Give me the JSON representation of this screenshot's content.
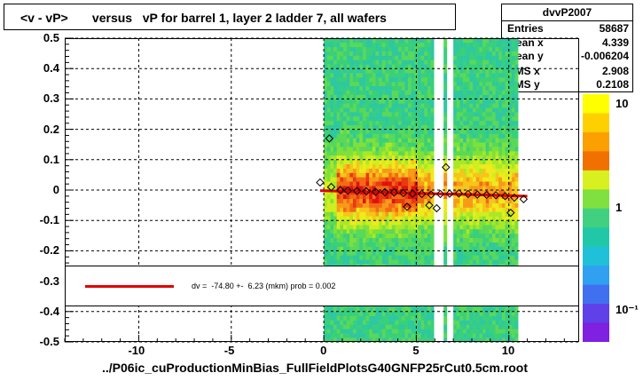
{
  "title": "<v - vP>       versus   vP for barrel 1, layer 2 ladder 7, all wafers",
  "stats": {
    "name": "dvvP2007",
    "rows": [
      {
        "label": "Entries",
        "value": "58687"
      },
      {
        "label": "Mean x",
        "value": "4.339"
      },
      {
        "label": "Mean y",
        "value": "-0.006204"
      },
      {
        "label": "RMS x",
        "value": "2.908"
      },
      {
        "label": "RMS y",
        "value": "0.2108"
      }
    ]
  },
  "fit_text": "dv =  -74.80 +-  6.23 (mkm) prob = 0.002",
  "chart_data": {
    "type": "heatmap",
    "xlabel": "../P06ic_cuProductionMinBias_FullFieldPlotsG40GNFP25rCut0.5cm.root",
    "ylabel": "",
    "xlim": [
      -14,
      13.8
    ],
    "ylim": [
      -0.5,
      0.5
    ],
    "x_ticks": [
      "-10",
      "-5",
      "0",
      "5",
      "10"
    ],
    "y_ticks": [
      "-0.5",
      "-0.4",
      "-0.3",
      "-0.2",
      "-0.1",
      "0",
      "0.1",
      "0.2",
      "0.3",
      "0.4",
      "0.5"
    ],
    "grid": true,
    "colorbar_labels": [
      "10",
      "1",
      "10⁻¹"
    ],
    "heat_region_x": [
      0,
      10.5
    ],
    "profile_points": [
      {
        "x": -0.2,
        "y": 0.025
      },
      {
        "x": 0.4,
        "y": 0.01
      },
      {
        "x": 0.9,
        "y": 0.0
      },
      {
        "x": 1.3,
        "y": -0.002
      },
      {
        "x": 1.8,
        "y": -0.003
      },
      {
        "x": 2.3,
        "y": -0.004
      },
      {
        "x": 2.8,
        "y": -0.006
      },
      {
        "x": 3.3,
        "y": -0.007
      },
      {
        "x": 3.8,
        "y": -0.008
      },
      {
        "x": 4.3,
        "y": -0.01
      },
      {
        "x": 4.8,
        "y": -0.012
      },
      {
        "x": 5.3,
        "y": -0.013
      },
      {
        "x": 5.8,
        "y": -0.015
      },
      {
        "x": 6.3,
        "y": -0.013
      },
      {
        "x": 6.8,
        "y": -0.012
      },
      {
        "x": 7.3,
        "y": -0.011
      },
      {
        "x": 7.8,
        "y": -0.013
      },
      {
        "x": 8.3,
        "y": -0.015
      },
      {
        "x": 8.8,
        "y": -0.016
      },
      {
        "x": 9.3,
        "y": -0.017
      },
      {
        "x": 9.8,
        "y": -0.02
      },
      {
        "x": 10.3,
        "y": -0.025
      },
      {
        "x": 10.8,
        "y": -0.03
      }
    ],
    "outlier_points": [
      {
        "x": 0.3,
        "y": 0.17
      },
      {
        "x": 6.6,
        "y": 0.075
      },
      {
        "x": 4.5,
        "y": -0.055
      },
      {
        "x": 5.7,
        "y": -0.05
      },
      {
        "x": 6.1,
        "y": -0.06
      },
      {
        "x": 10.1,
        "y": -0.075
      }
    ],
    "fit_line": {
      "x": [
        -0.2,
        11.0
      ],
      "y": [
        -0.002,
        -0.02
      ]
    }
  }
}
